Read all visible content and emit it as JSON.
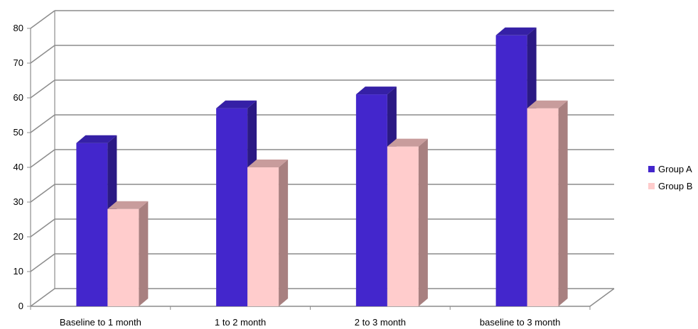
{
  "chart_data": {
    "type": "bar",
    "style": "3d-clustered-column",
    "categories": [
      "Baseline to 1 month",
      "1 to 2 month",
      "2 to 3 month",
      "baseline to 3 month"
    ],
    "series": [
      {
        "name": "Group A",
        "values": [
          47,
          57,
          61,
          78
        ],
        "color": "#4326CC",
        "side_color": "#2B1A84",
        "top_color": "#3520A6"
      },
      {
        "name": "Group B",
        "values": [
          28,
          40,
          46,
          57
        ],
        "color": "#FFCCCC",
        "side_color": "#A88080",
        "top_color": "#C89C9C"
      }
    ],
    "ylim": [
      0,
      80
    ],
    "y_ticks": [
      "0",
      "10",
      "20",
      "30",
      "40",
      "50",
      "60",
      "70",
      "80"
    ],
    "grid": true,
    "legend_position": "right",
    "colors": {
      "grid": "#8C8C8C",
      "axis": "#8C8C8C"
    }
  }
}
